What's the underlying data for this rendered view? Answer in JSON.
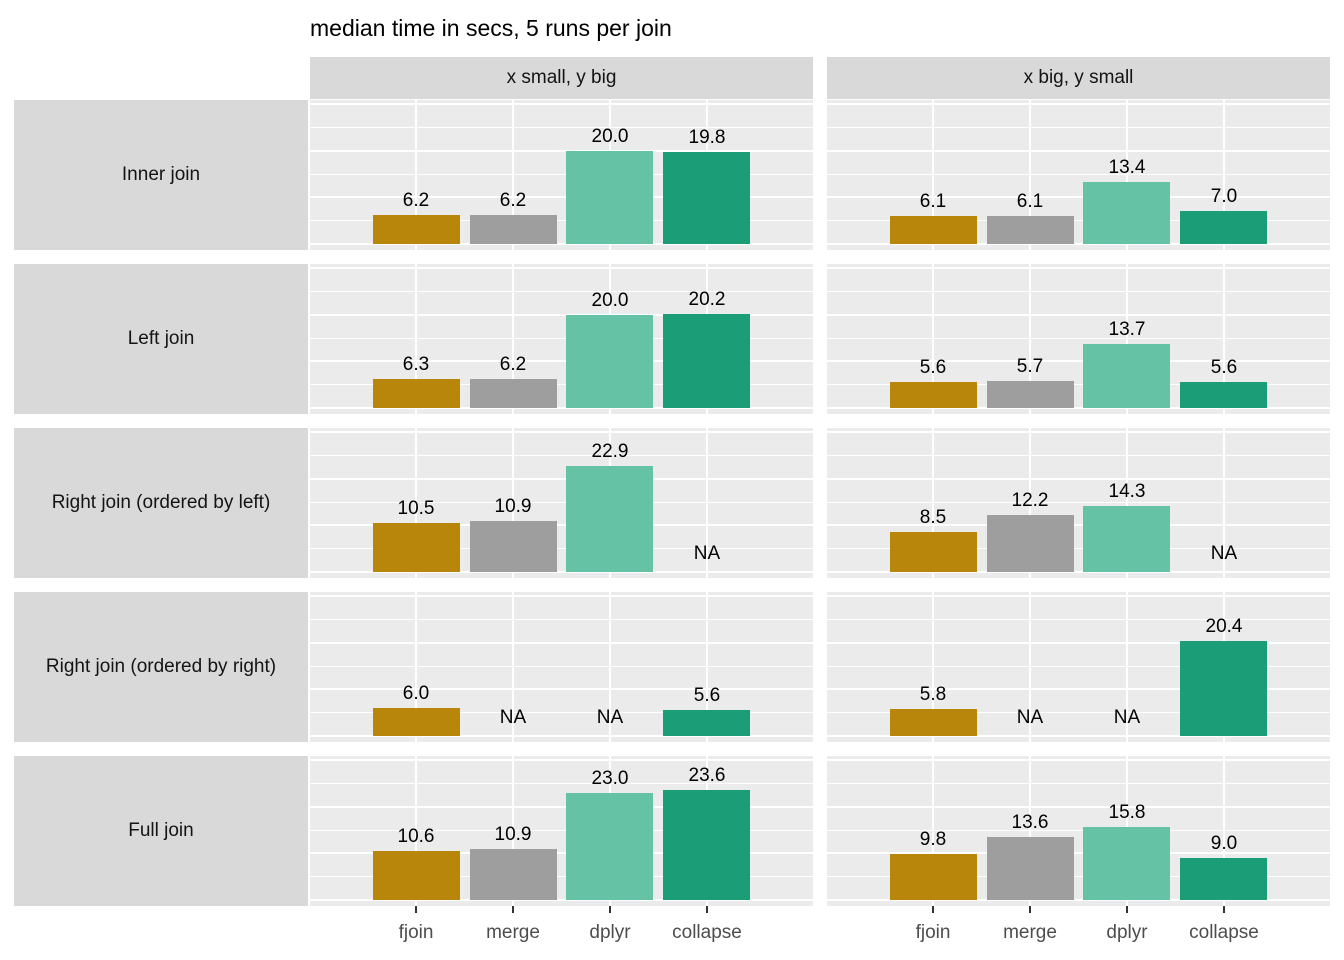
{
  "title": "median time in secs, 5 runs per join",
  "colors": {
    "panel_bg": "#EBEBEB",
    "strip_bg": "#D9D9D9",
    "gridline": "#FFFFFF",
    "axis_text": "#4D4D4D",
    "tick": "#333333",
    "value_label": "#000000"
  },
  "chart_data": {
    "type": "bar",
    "categories": [
      "fjoin",
      "merge",
      "dplyr",
      "collapse"
    ],
    "col_facets": [
      "x small, y big",
      "x big, y small"
    ],
    "row_facets": [
      "Inner join",
      "Left join",
      "Right join (ordered by left)",
      "Right join (ordered by right)",
      "Full join"
    ],
    "na_label": "NA",
    "ylim": [
      0,
      31
    ],
    "major_gridlines": [
      0,
      10,
      20,
      30
    ],
    "minor_gridlines": [
      5,
      15,
      25
    ],
    "grid": true,
    "legend_position": "none",
    "value_label_format": "1 decimal place",
    "bar_colors": {
      "fjoin": "#B8860B",
      "merge": "#9E9E9E",
      "dplyr": "#66C2A5",
      "collapse": "#1B9E77"
    },
    "series": [
      {
        "row_facet": "Inner join",
        "col_facet": "x small, y big",
        "values": [
          6.2,
          6.2,
          20.0,
          19.8
        ]
      },
      {
        "row_facet": "Inner join",
        "col_facet": "x big, y small",
        "values": [
          6.1,
          6.1,
          13.4,
          7.0
        ]
      },
      {
        "row_facet": "Left join",
        "col_facet": "x small, y big",
        "values": [
          6.3,
          6.2,
          20.0,
          20.2
        ]
      },
      {
        "row_facet": "Left join",
        "col_facet": "x big, y small",
        "values": [
          5.6,
          5.7,
          13.7,
          5.6
        ]
      },
      {
        "row_facet": "Right join (ordered by left)",
        "col_facet": "x small, y big",
        "values": [
          10.5,
          10.9,
          22.9,
          null
        ]
      },
      {
        "row_facet": "Right join (ordered by left)",
        "col_facet": "x big, y small",
        "values": [
          8.5,
          12.2,
          14.3,
          null
        ]
      },
      {
        "row_facet": "Right join (ordered by right)",
        "col_facet": "x small, y big",
        "values": [
          6.0,
          null,
          null,
          5.6
        ]
      },
      {
        "row_facet": "Right join (ordered by right)",
        "col_facet": "x big, y small",
        "values": [
          5.8,
          null,
          null,
          20.4
        ]
      },
      {
        "row_facet": "Full join",
        "col_facet": "x small, y big",
        "values": [
          10.6,
          10.9,
          23.0,
          23.6
        ]
      },
      {
        "row_facet": "Full join",
        "col_facet": "x big, y small",
        "values": [
          9.8,
          13.6,
          15.8,
          9.0
        ]
      }
    ]
  }
}
